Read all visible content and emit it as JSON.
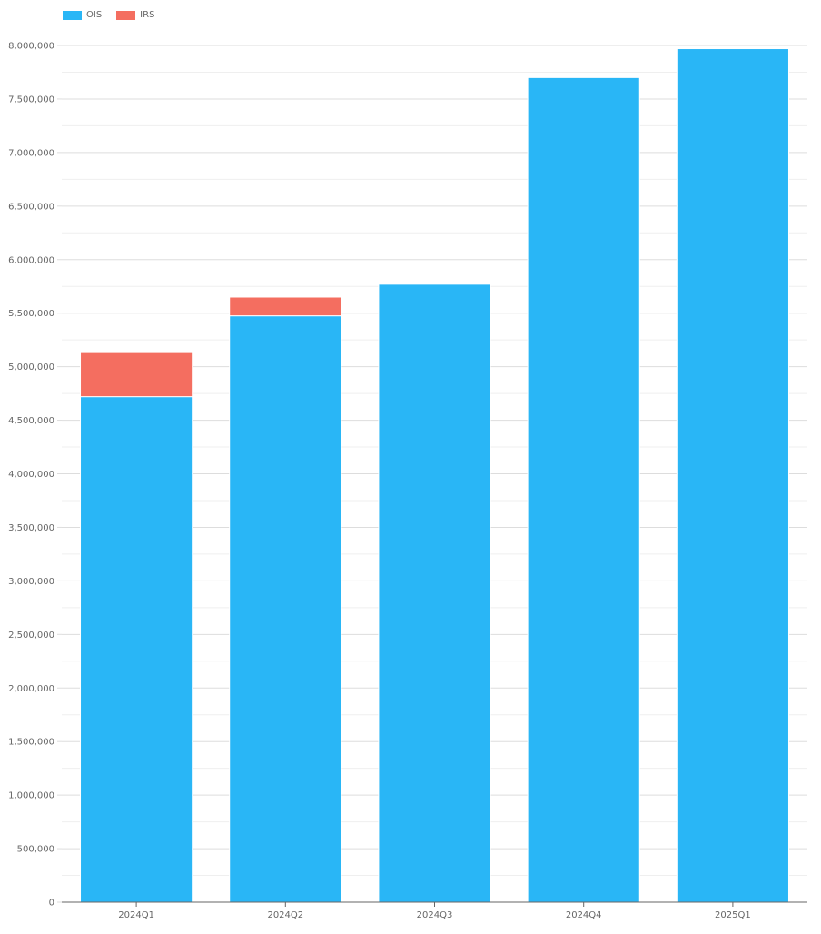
{
  "chart_data": {
    "type": "bar",
    "stacked": true,
    "categories": [
      "2024Q1",
      "2024Q2",
      "2024Q3",
      "2024Q4",
      "2025Q1"
    ],
    "series": [
      {
        "name": "OIS",
        "color": "#29B6F6",
        "values": [
          4720000,
          5475000,
          5770000,
          7700000,
          7970000
        ]
      },
      {
        "name": "IRS",
        "color": "#F46E60",
        "values": [
          420000,
          175000,
          0,
          0,
          0
        ]
      }
    ],
    "title": "",
    "xlabel": "",
    "ylabel": "",
    "ylim": [
      0,
      8000000
    ],
    "y_tick_step": 500000,
    "y_tick_labels": [
      "0",
      "500,000",
      "1,000,000",
      "1,500,000",
      "2,000,000",
      "2,500,000",
      "3,000,000",
      "3,500,000",
      "4,000,000",
      "4,500,000",
      "5,000,000",
      "5,500,000",
      "6,000,000",
      "6,500,000",
      "7,000,000",
      "7,500,000",
      "8,000,000"
    ],
    "grid": true,
    "legend_position": "top-left",
    "colors": {
      "grid_major": "#DDDDDD",
      "grid_minor": "#EFEFEF",
      "axis": "#666666"
    }
  }
}
